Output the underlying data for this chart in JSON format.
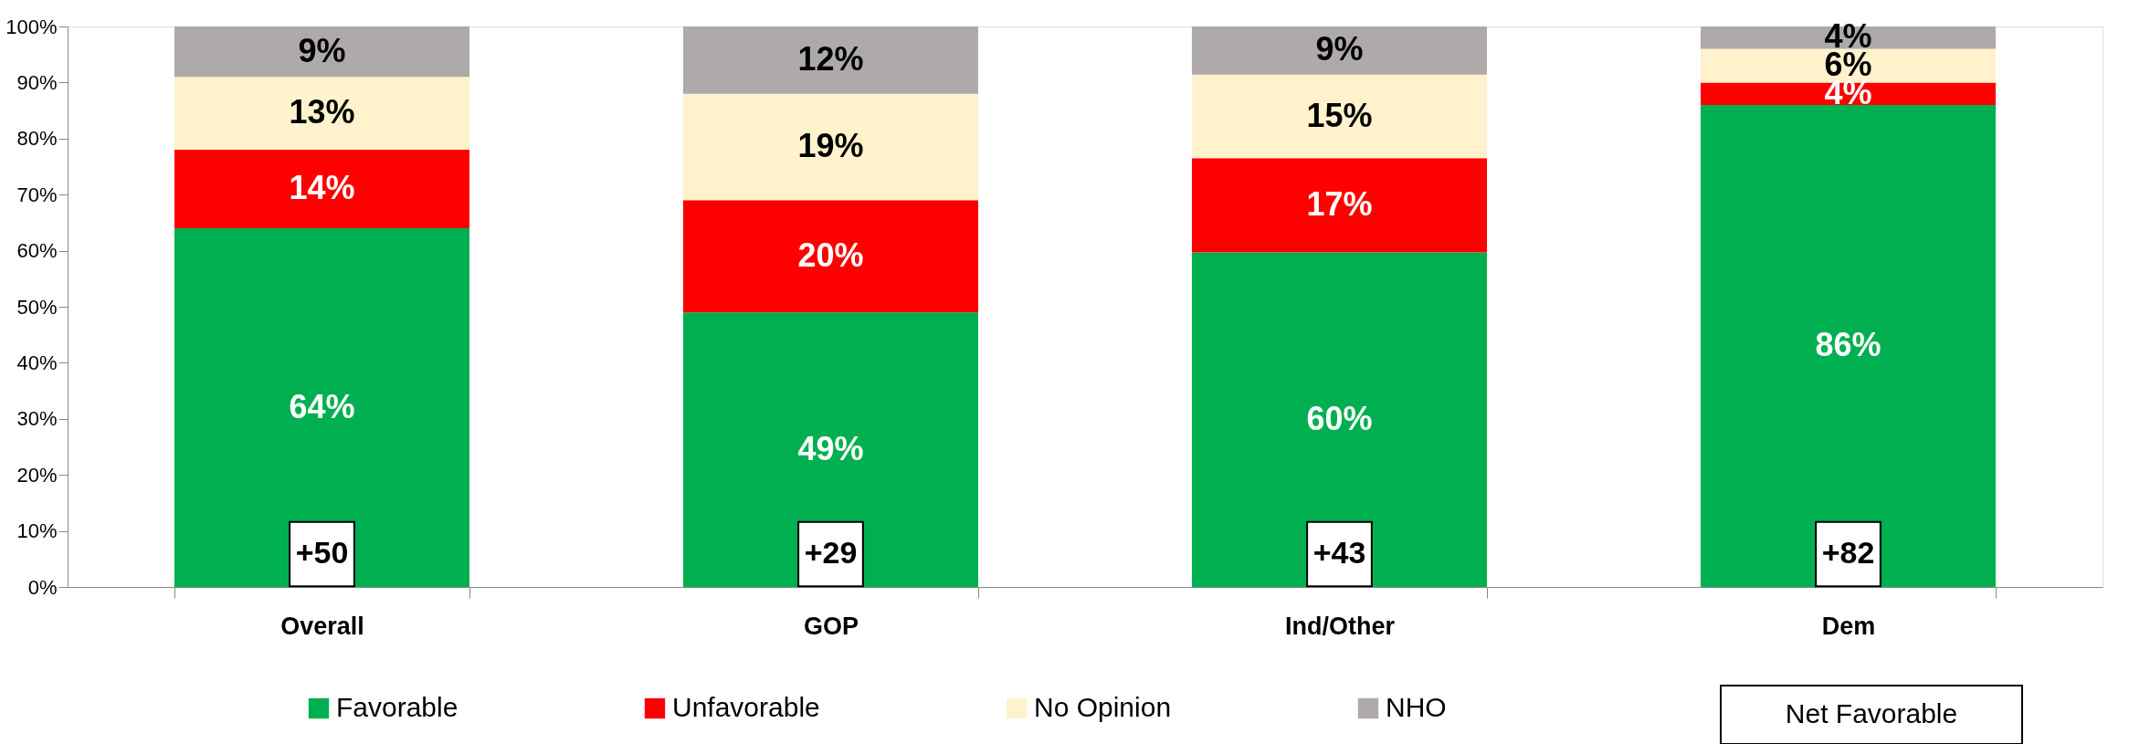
{
  "chart_data": {
    "type": "bar",
    "stacked": true,
    "categories": [
      "Overall",
      "GOP",
      "Ind/Other",
      "Dem"
    ],
    "series": [
      {
        "name": "Favorable",
        "color": "#00b050",
        "values": [
          64,
          49,
          59.7,
          86
        ],
        "value_labels": [
          "64%",
          "49%",
          "60%",
          "86%"
        ]
      },
      {
        "name": "Unfavorable",
        "color": "#ff0000",
        "values": [
          14,
          20,
          16.8,
          4
        ],
        "value_labels": [
          "14%",
          "20%",
          "17%",
          "4%"
        ]
      },
      {
        "name": "No Opinion",
        "color": "#fff2cc",
        "values": [
          13,
          19,
          14.9,
          6
        ],
        "value_labels": [
          "13%",
          "19%",
          "15%",
          "6%"
        ]
      },
      {
        "name": "NHO",
        "color": "#aeaaaa",
        "values": [
          9,
          12,
          8.6,
          4
        ],
        "value_labels": [
          "9%",
          "12%",
          "9%",
          "4%"
        ]
      }
    ],
    "ylim": [
      0,
      100
    ],
    "yticks": [
      {
        "value": 0,
        "label": "0%"
      },
      {
        "value": 10,
        "label": "10%"
      },
      {
        "value": 20,
        "label": "20%"
      },
      {
        "value": 30,
        "label": "30%"
      },
      {
        "value": 40,
        "label": "40%"
      },
      {
        "value": 50,
        "label": "50%"
      },
      {
        "value": 60,
        "label": "60%"
      },
      {
        "value": 70,
        "label": "70%"
      },
      {
        "value": 80,
        "label": "80%"
      },
      {
        "value": 90,
        "label": "90%"
      },
      {
        "value": 100,
        "label": "100%"
      }
    ],
    "annotations": [
      "+50",
      "+29",
      "+43",
      "+82",
      "Net Favorable"
    ],
    "grid": false,
    "legend": "bottom"
  }
}
